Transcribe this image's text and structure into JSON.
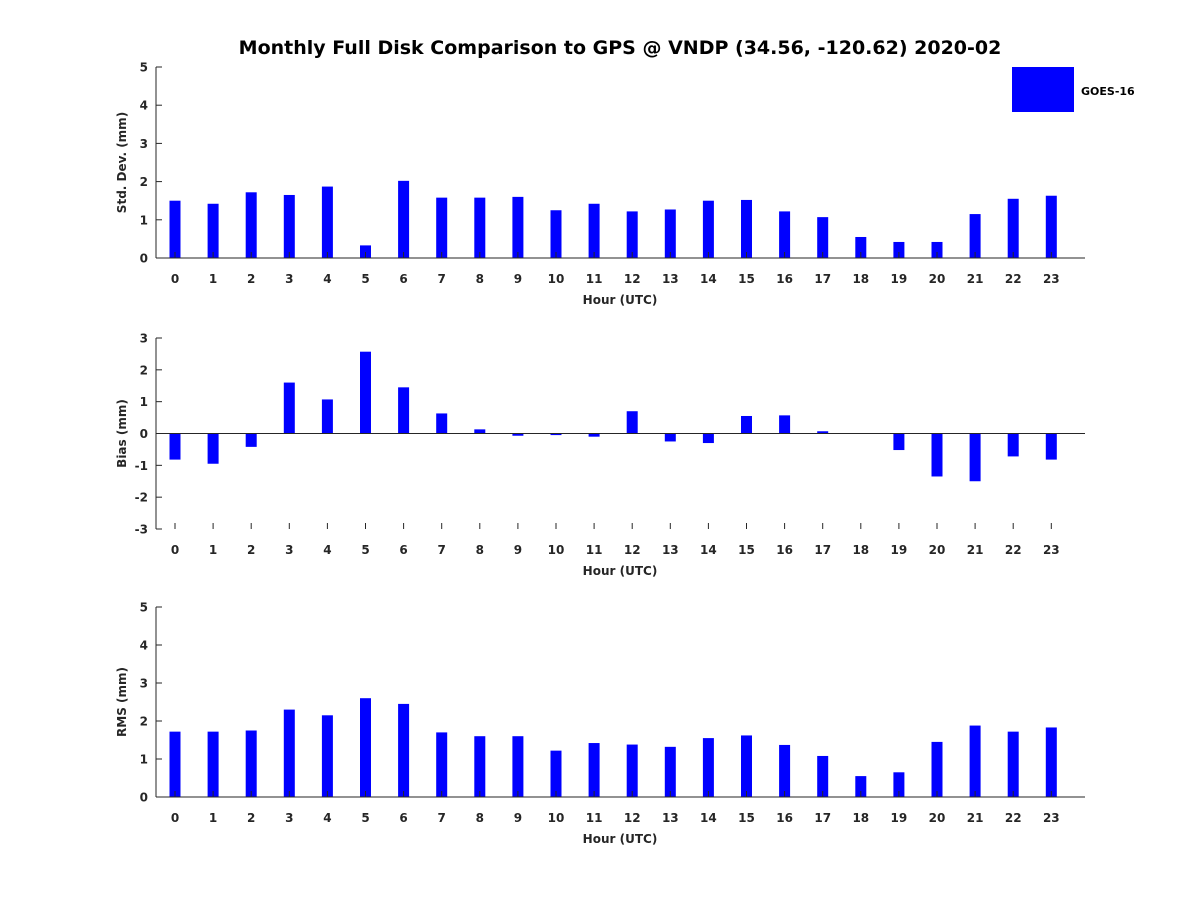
{
  "chart_data": {
    "title": "Monthly Full Disk Comparison to GPS @ VNDP (34.56, -120.62) 2020-02",
    "type": "bar",
    "legend": {
      "label": "GOES-16",
      "color": "#0000ff",
      "placement": "top-right"
    },
    "categories": [
      "0",
      "1",
      "2",
      "3",
      "4",
      "5",
      "6",
      "7",
      "8",
      "9",
      "10",
      "11",
      "12",
      "13",
      "14",
      "15",
      "16",
      "17",
      "18",
      "19",
      "20",
      "21",
      "22",
      "23"
    ],
    "panels": [
      {
        "type": "bar",
        "xlabel": "Hour (UTC)",
        "ylabel": "Std. Dev. (mm)",
        "ylim": [
          0,
          5
        ],
        "yticks": [
          0,
          1,
          2,
          3,
          4,
          5
        ],
        "values": [
          1.5,
          1.42,
          1.72,
          1.65,
          1.87,
          0.33,
          2.02,
          1.58,
          1.58,
          1.6,
          1.25,
          1.42,
          1.22,
          1.27,
          1.5,
          1.52,
          1.22,
          1.07,
          0.55,
          0.42,
          0.42,
          1.15,
          1.55,
          1.63
        ]
      },
      {
        "type": "bar",
        "xlabel": "Hour (UTC)",
        "ylabel": "Bias (mm)",
        "ylim": [
          -3,
          3
        ],
        "yticks": [
          -3,
          -2,
          -1,
          0,
          1,
          2,
          3
        ],
        "values": [
          -0.82,
          -0.95,
          -0.42,
          1.6,
          1.07,
          2.57,
          1.45,
          0.63,
          0.13,
          -0.07,
          -0.05,
          -0.1,
          0.7,
          -0.25,
          -0.3,
          0.55,
          0.57,
          0.07,
          0,
          -0.52,
          -1.35,
          -1.5,
          -0.72,
          -0.82
        ]
      },
      {
        "type": "bar",
        "xlabel": "Hour (UTC)",
        "ylabel": "RMS (mm)",
        "ylim": [
          0,
          5
        ],
        "yticks": [
          0,
          1,
          2,
          3,
          4,
          5
        ],
        "values": [
          1.72,
          1.72,
          1.75,
          2.3,
          2.15,
          2.6,
          2.45,
          1.7,
          1.6,
          1.6,
          1.22,
          1.42,
          1.38,
          1.32,
          1.55,
          1.62,
          1.37,
          1.08,
          0.55,
          0.65,
          1.45,
          1.88,
          1.72,
          1.83
        ]
      }
    ]
  }
}
